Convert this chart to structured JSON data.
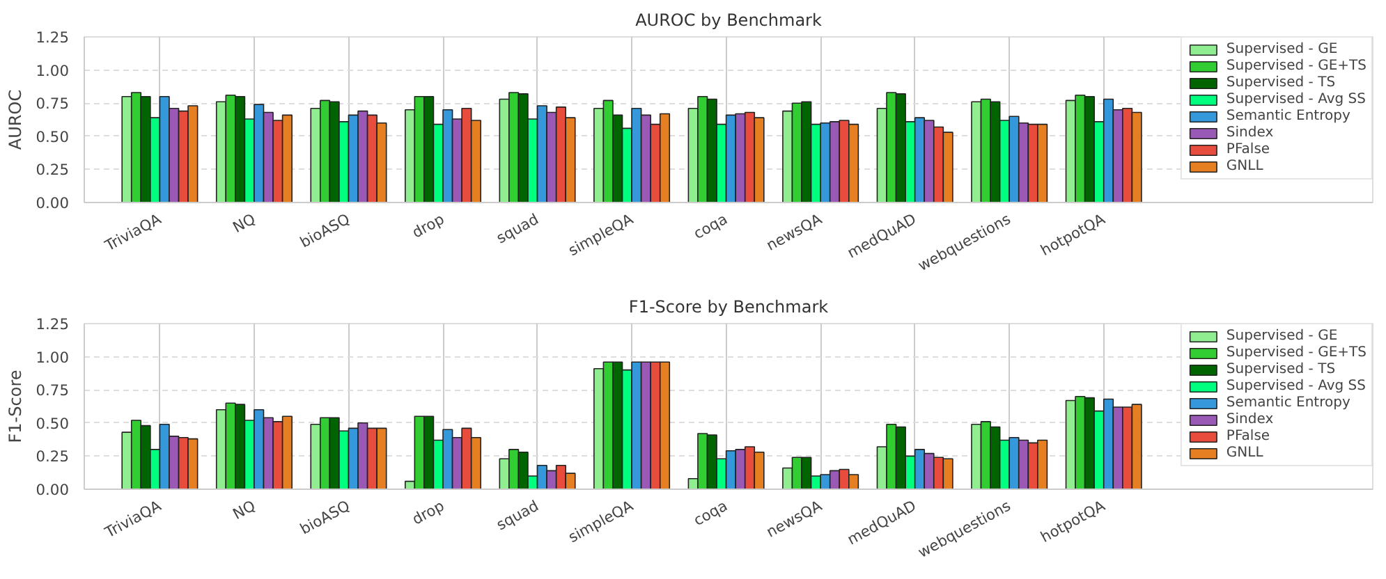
{
  "chart_data": [
    {
      "type": "bar",
      "title": "AUROC by Benchmark",
      "ylabel": "AUROC",
      "categories": [
        "TriviaQA",
        "NQ",
        "bioASQ",
        "drop",
        "squad",
        "simpleQA",
        "coqa",
        "newsQA",
        "medQuAD",
        "webquestions",
        "hotpotQA"
      ],
      "ylim": [
        0,
        1.25
      ],
      "yticks": [
        {
          "value": 0,
          "label": "0.00"
        },
        {
          "value": 0.25,
          "label": "0.25"
        },
        {
          "value": 0.5,
          "label": "0.50"
        },
        {
          "value": 0.75,
          "label": "0.75"
        },
        {
          "value": 1,
          "label": "1.00"
        },
        {
          "value": 1.25,
          "label": "1.25"
        }
      ],
      "grid": true,
      "legend": "top right",
      "series": [
        {
          "name": "Supervised - GE",
          "color": "#90ee90",
          "values": [
            0.8,
            0.76,
            0.71,
            0.7,
            0.78,
            0.71,
            0.71,
            0.69,
            0.71,
            0.76,
            0.77
          ]
        },
        {
          "name": "Supervised - GE+TS",
          "color": "#32cd32",
          "values": [
            0.83,
            0.81,
            0.77,
            0.8,
            0.83,
            0.77,
            0.8,
            0.75,
            0.83,
            0.78,
            0.81
          ]
        },
        {
          "name": "Supervised - TS",
          "color": "#006400",
          "values": [
            0.8,
            0.8,
            0.76,
            0.8,
            0.82,
            0.66,
            0.78,
            0.76,
            0.82,
            0.76,
            0.8
          ]
        },
        {
          "name": "Supervised - Avg SS",
          "color": "#00ff7f",
          "values": [
            0.64,
            0.63,
            0.61,
            0.59,
            0.63,
            0.56,
            0.59,
            0.59,
            0.61,
            0.62,
            0.61
          ]
        },
        {
          "name": "Semantic Entropy",
          "color": "#3498db",
          "values": [
            0.8,
            0.74,
            0.66,
            0.7,
            0.73,
            0.71,
            0.66,
            0.6,
            0.64,
            0.65,
            0.78
          ]
        },
        {
          "name": "Sindex",
          "color": "#9b59b6",
          "values": [
            0.71,
            0.68,
            0.69,
            0.63,
            0.68,
            0.66,
            0.67,
            0.61,
            0.62,
            0.6,
            0.7
          ]
        },
        {
          "name": "PFalse",
          "color": "#e74c3c",
          "values": [
            0.69,
            0.62,
            0.66,
            0.71,
            0.72,
            0.59,
            0.68,
            0.62,
            0.57,
            0.59,
            0.71
          ]
        },
        {
          "name": "GNLL",
          "color": "#e67e22",
          "values": [
            0.73,
            0.66,
            0.6,
            0.62,
            0.64,
            0.67,
            0.64,
            0.59,
            0.53,
            0.59,
            0.68
          ]
        }
      ]
    },
    {
      "type": "bar",
      "title": "F1-Score by Benchmark",
      "ylabel": "F1-Score",
      "categories": [
        "TriviaQA",
        "NQ",
        "bioASQ",
        "drop",
        "squad",
        "simpleQA",
        "coqa",
        "newsQA",
        "medQuAD",
        "webquestions",
        "hotpotQA"
      ],
      "ylim": [
        0,
        1.25
      ],
      "yticks": [
        {
          "value": 0,
          "label": "0.00"
        },
        {
          "value": 0.25,
          "label": "0.25"
        },
        {
          "value": 0.5,
          "label": "0.50"
        },
        {
          "value": 0.75,
          "label": "0.75"
        },
        {
          "value": 1,
          "label": "1.00"
        },
        {
          "value": 1.25,
          "label": "1.25"
        }
      ],
      "grid": true,
      "legend": "top right",
      "series": [
        {
          "name": "Supervised - GE",
          "color": "#90ee90",
          "values": [
            0.43,
            0.6,
            0.49,
            0.06,
            0.23,
            0.91,
            0.08,
            0.16,
            0.32,
            0.49,
            0.67
          ]
        },
        {
          "name": "Supervised - GE+TS",
          "color": "#32cd32",
          "values": [
            0.52,
            0.65,
            0.54,
            0.55,
            0.3,
            0.96,
            0.42,
            0.24,
            0.49,
            0.51,
            0.7
          ]
        },
        {
          "name": "Supervised - TS",
          "color": "#006400",
          "values": [
            0.48,
            0.64,
            0.54,
            0.55,
            0.28,
            0.96,
            0.41,
            0.24,
            0.47,
            0.47,
            0.69
          ]
        },
        {
          "name": "Supervised - Avg SS",
          "color": "#00ff7f",
          "values": [
            0.3,
            0.52,
            0.44,
            0.37,
            0.1,
            0.9,
            0.23,
            0.1,
            0.25,
            0.37,
            0.59
          ]
        },
        {
          "name": "Semantic Entropy",
          "color": "#3498db",
          "values": [
            0.49,
            0.6,
            0.46,
            0.45,
            0.18,
            0.96,
            0.29,
            0.11,
            0.3,
            0.39,
            0.68
          ]
        },
        {
          "name": "Sindex",
          "color": "#9b59b6",
          "values": [
            0.4,
            0.54,
            0.5,
            0.39,
            0.14,
            0.96,
            0.3,
            0.14,
            0.27,
            0.37,
            0.62
          ]
        },
        {
          "name": "PFalse",
          "color": "#e74c3c",
          "values": [
            0.39,
            0.51,
            0.46,
            0.46,
            0.18,
            0.96,
            0.32,
            0.15,
            0.24,
            0.35,
            0.62
          ]
        },
        {
          "name": "GNLL",
          "color": "#e67e22",
          "values": [
            0.38,
            0.55,
            0.46,
            0.39,
            0.12,
            0.96,
            0.28,
            0.11,
            0.23,
            0.37,
            0.64
          ]
        }
      ]
    }
  ]
}
